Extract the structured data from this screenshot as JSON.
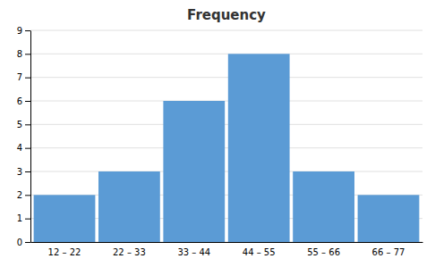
{
  "chart_data": {
    "type": "bar",
    "title": "Frequency",
    "categories": [
      "12 – 22",
      "22 – 33",
      "33 – 44",
      "44 – 55",
      "55 – 66",
      "66 – 77"
    ],
    "values": [
      2,
      3,
      6,
      8,
      3,
      2
    ],
    "color": "#5B9BD5",
    "ylim": [
      0,
      9
    ],
    "yticks": [
      0,
      1,
      2,
      3,
      4,
      5,
      6,
      7,
      8,
      9
    ],
    "grid": true
  }
}
